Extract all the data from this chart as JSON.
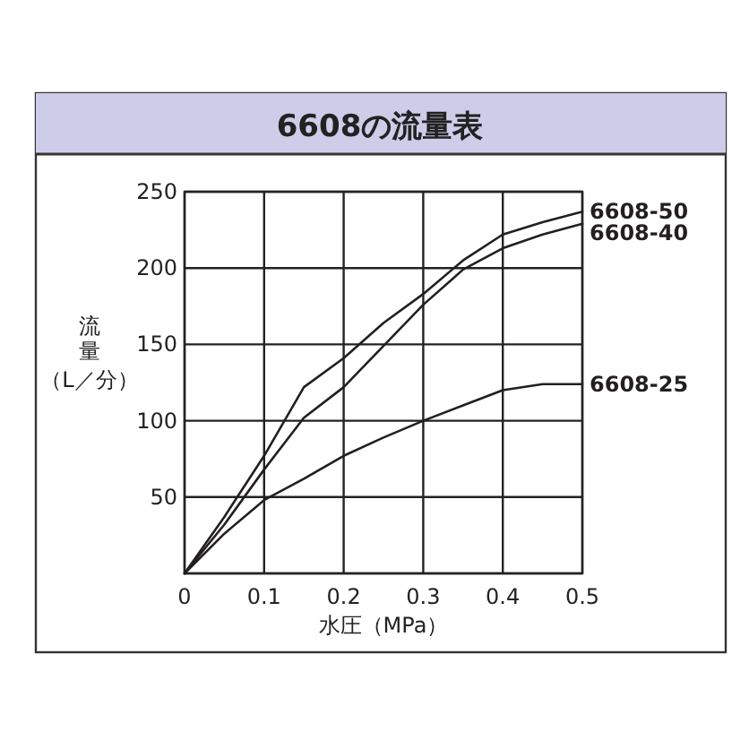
{
  "chart_data": {
    "type": "line",
    "title": "6608の流量表",
    "xlabel": "水圧（MPa）",
    "ylabel": "流量（L／分）",
    "x": [
      0,
      0.05,
      0.1,
      0.15,
      0.2,
      0.25,
      0.3,
      0.35,
      0.4,
      0.45,
      0.5
    ],
    "series": [
      {
        "name": "6608-50",
        "color": "#231f20",
        "values": [
          0,
          37,
          77,
          122,
          141,
          164,
          183,
          205,
          222,
          230,
          237
        ]
      },
      {
        "name": "6608-40",
        "color": "#231f20",
        "values": [
          0,
          32,
          68,
          102,
          122,
          149,
          176,
          199,
          213,
          222,
          229
        ]
      },
      {
        "name": "6608-25",
        "color": "#231f20",
        "values": [
          0,
          26,
          48,
          62,
          77,
          89,
          100,
          110,
          120,
          124,
          124
        ]
      }
    ],
    "xlim": [
      0,
      0.5
    ],
    "xticks": [
      0,
      0.1,
      0.2,
      0.3,
      0.4,
      0.5
    ],
    "ylim": [
      0,
      250
    ],
    "yticks": [
      {
        "value": 0,
        "label": null
      },
      50,
      100,
      150,
      200,
      250
    ],
    "grid": true,
    "marker": "none",
    "line_style": "solid"
  }
}
